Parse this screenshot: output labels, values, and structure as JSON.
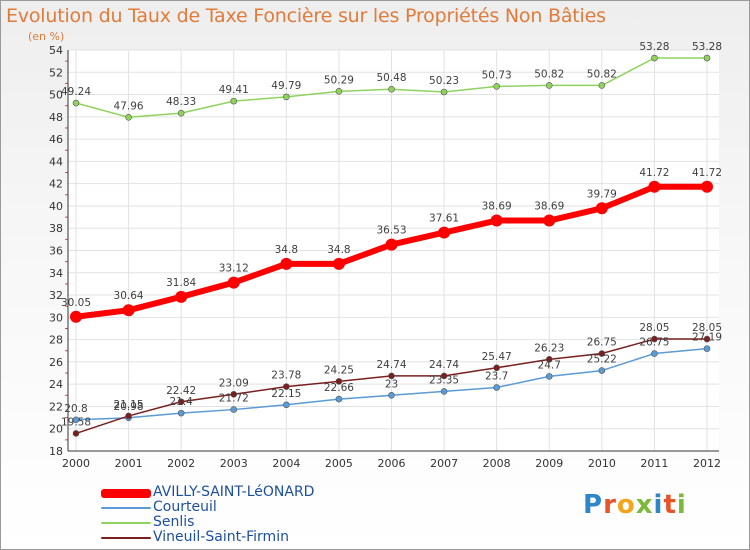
{
  "chart_data": {
    "type": "line",
    "title": "Evolution du Taux de Taxe Foncière sur les Propriétés Non Bâties",
    "subtitle": "(en %)",
    "categories": [
      "2000",
      "2001",
      "2002",
      "2003",
      "2004",
      "2005",
      "2006",
      "2007",
      "2008",
      "2009",
      "2010",
      "2011",
      "2012"
    ],
    "ylim": [
      18,
      54
    ],
    "yticks": [
      18,
      20,
      22,
      24,
      26,
      28,
      30,
      32,
      34,
      36,
      38,
      40,
      42,
      44,
      46,
      48,
      50,
      52,
      54
    ],
    "grid": true,
    "legend_position": "bottom-left",
    "series": [
      {
        "name": "AVILLY-SAINT-LéONARD",
        "color": "#ff0000",
        "values": [
          30.05,
          30.64,
          31.84,
          33.12,
          34.8,
          34.8,
          36.53,
          37.61,
          38.69,
          38.69,
          39.79,
          41.72,
          41.72
        ],
        "labels": [
          "30.05",
          "30.64",
          "31.84",
          "33.12",
          "34.8",
          "34.8",
          "36.53",
          "37.61",
          "38.69",
          "38.69",
          "39.79",
          "41.72",
          "41.72"
        ]
      },
      {
        "name": "Courteuil",
        "color": "#5b9bd5",
        "values": [
          20.8,
          20.98,
          21.4,
          21.72,
          22.15,
          22.66,
          23,
          23.35,
          23.7,
          24.7,
          25.22,
          26.75,
          27.19
        ],
        "labels": [
          "20.8",
          "20.98",
          "21.4",
          "21.72",
          "22.15",
          "22.66",
          "23",
          "23.35",
          "23.7",
          "24.7",
          "25.22",
          "26.75",
          "27.19"
        ]
      },
      {
        "name": "Senlis",
        "color": "#8fd35e",
        "values": [
          49.24,
          47.96,
          48.33,
          49.41,
          49.79,
          50.29,
          50.48,
          50.23,
          50.73,
          50.82,
          50.82,
          53.28,
          53.28
        ],
        "labels": [
          "49.24",
          "47.96",
          "48.33",
          "49.41",
          "49.79",
          "50.29",
          "50.48",
          "50.23",
          "50.73",
          "50.82",
          "50.82",
          "53.28",
          "53.28"
        ]
      },
      {
        "name": "Vineuil-Saint-Firmin",
        "color": "#7a1f1f",
        "values": [
          19.58,
          21.15,
          22.42,
          23.09,
          23.78,
          24.25,
          24.74,
          24.74,
          25.47,
          26.23,
          26.75,
          28.05,
          28.05
        ],
        "labels": [
          "19.58",
          "21.15",
          "22.42",
          "23.09",
          "23.78",
          "24.25",
          "24.74",
          "24.74",
          "25.47",
          "26.23",
          "26.75",
          "28.05",
          "28.05"
        ]
      }
    ]
  },
  "logo": {
    "text": "Proxiti",
    "colors": [
      "#2c86c7",
      "#e8542a",
      "#f3a51b",
      "#7cb83a",
      "#2c86c7",
      "#e8542a",
      "#7cb83a"
    ]
  }
}
